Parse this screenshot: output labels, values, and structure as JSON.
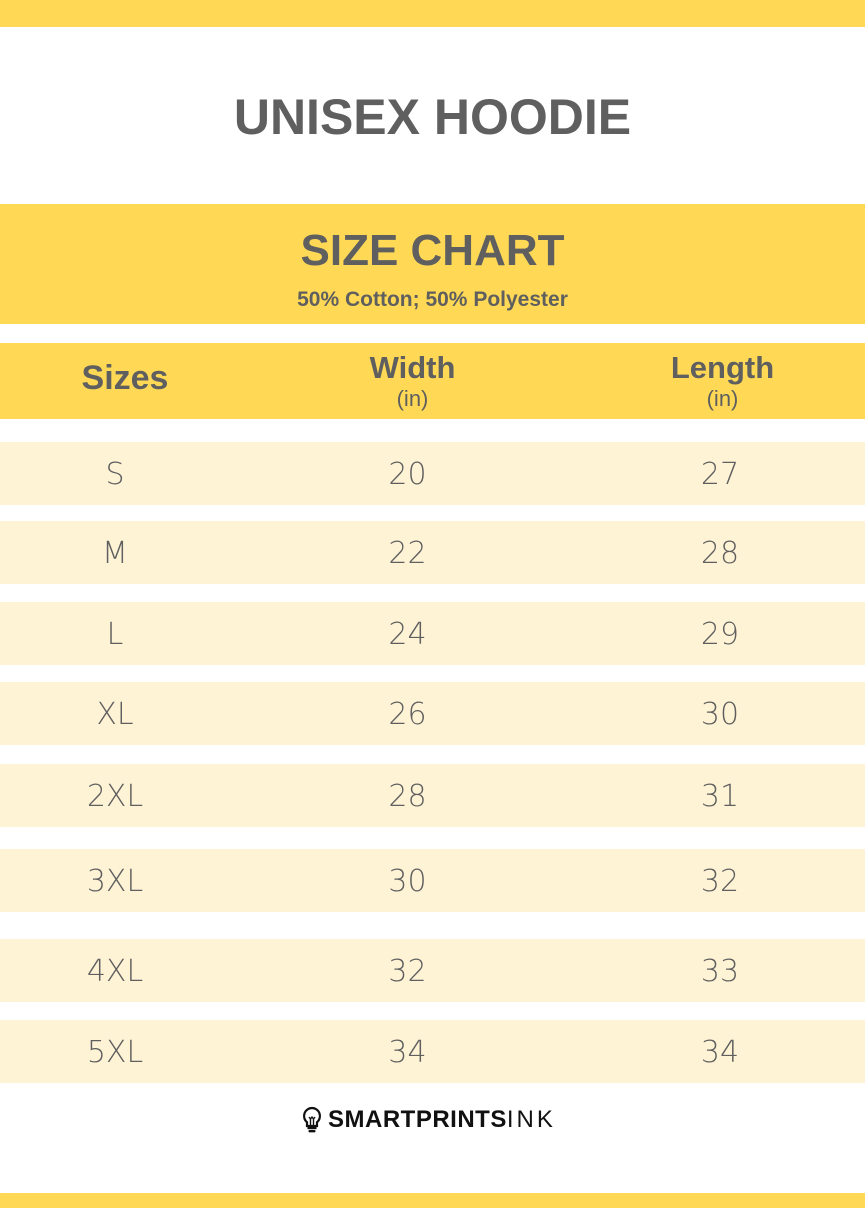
{
  "title": "UNISEX HOODIE",
  "band": {
    "title": "SIZE CHART",
    "subtitle": "50% Cotton; 50% Polyester"
  },
  "colors": {
    "accent": "#FFD955",
    "row": "#FFF3D6",
    "text": "#5f5f5f"
  },
  "chart_data": {
    "type": "table",
    "columns": [
      {
        "label": "Sizes",
        "unit": ""
      },
      {
        "label": "Width",
        "unit": "(in)"
      },
      {
        "label": "Length",
        "unit": "(in)"
      }
    ],
    "rows": [
      [
        "S",
        "20",
        "27"
      ],
      [
        "M",
        "22",
        "28"
      ],
      [
        "L",
        "24",
        "29"
      ],
      [
        "XL",
        "26",
        "30"
      ],
      [
        "2XL",
        "28",
        "31"
      ],
      [
        "3XL",
        "30",
        "32"
      ],
      [
        "4XL",
        "32",
        "33"
      ],
      [
        "5XL",
        "34",
        "34"
      ]
    ]
  },
  "logo": {
    "bold": "SMARTPRINTS",
    "light": "INK",
    "icon": "lightbulb-icon"
  }
}
